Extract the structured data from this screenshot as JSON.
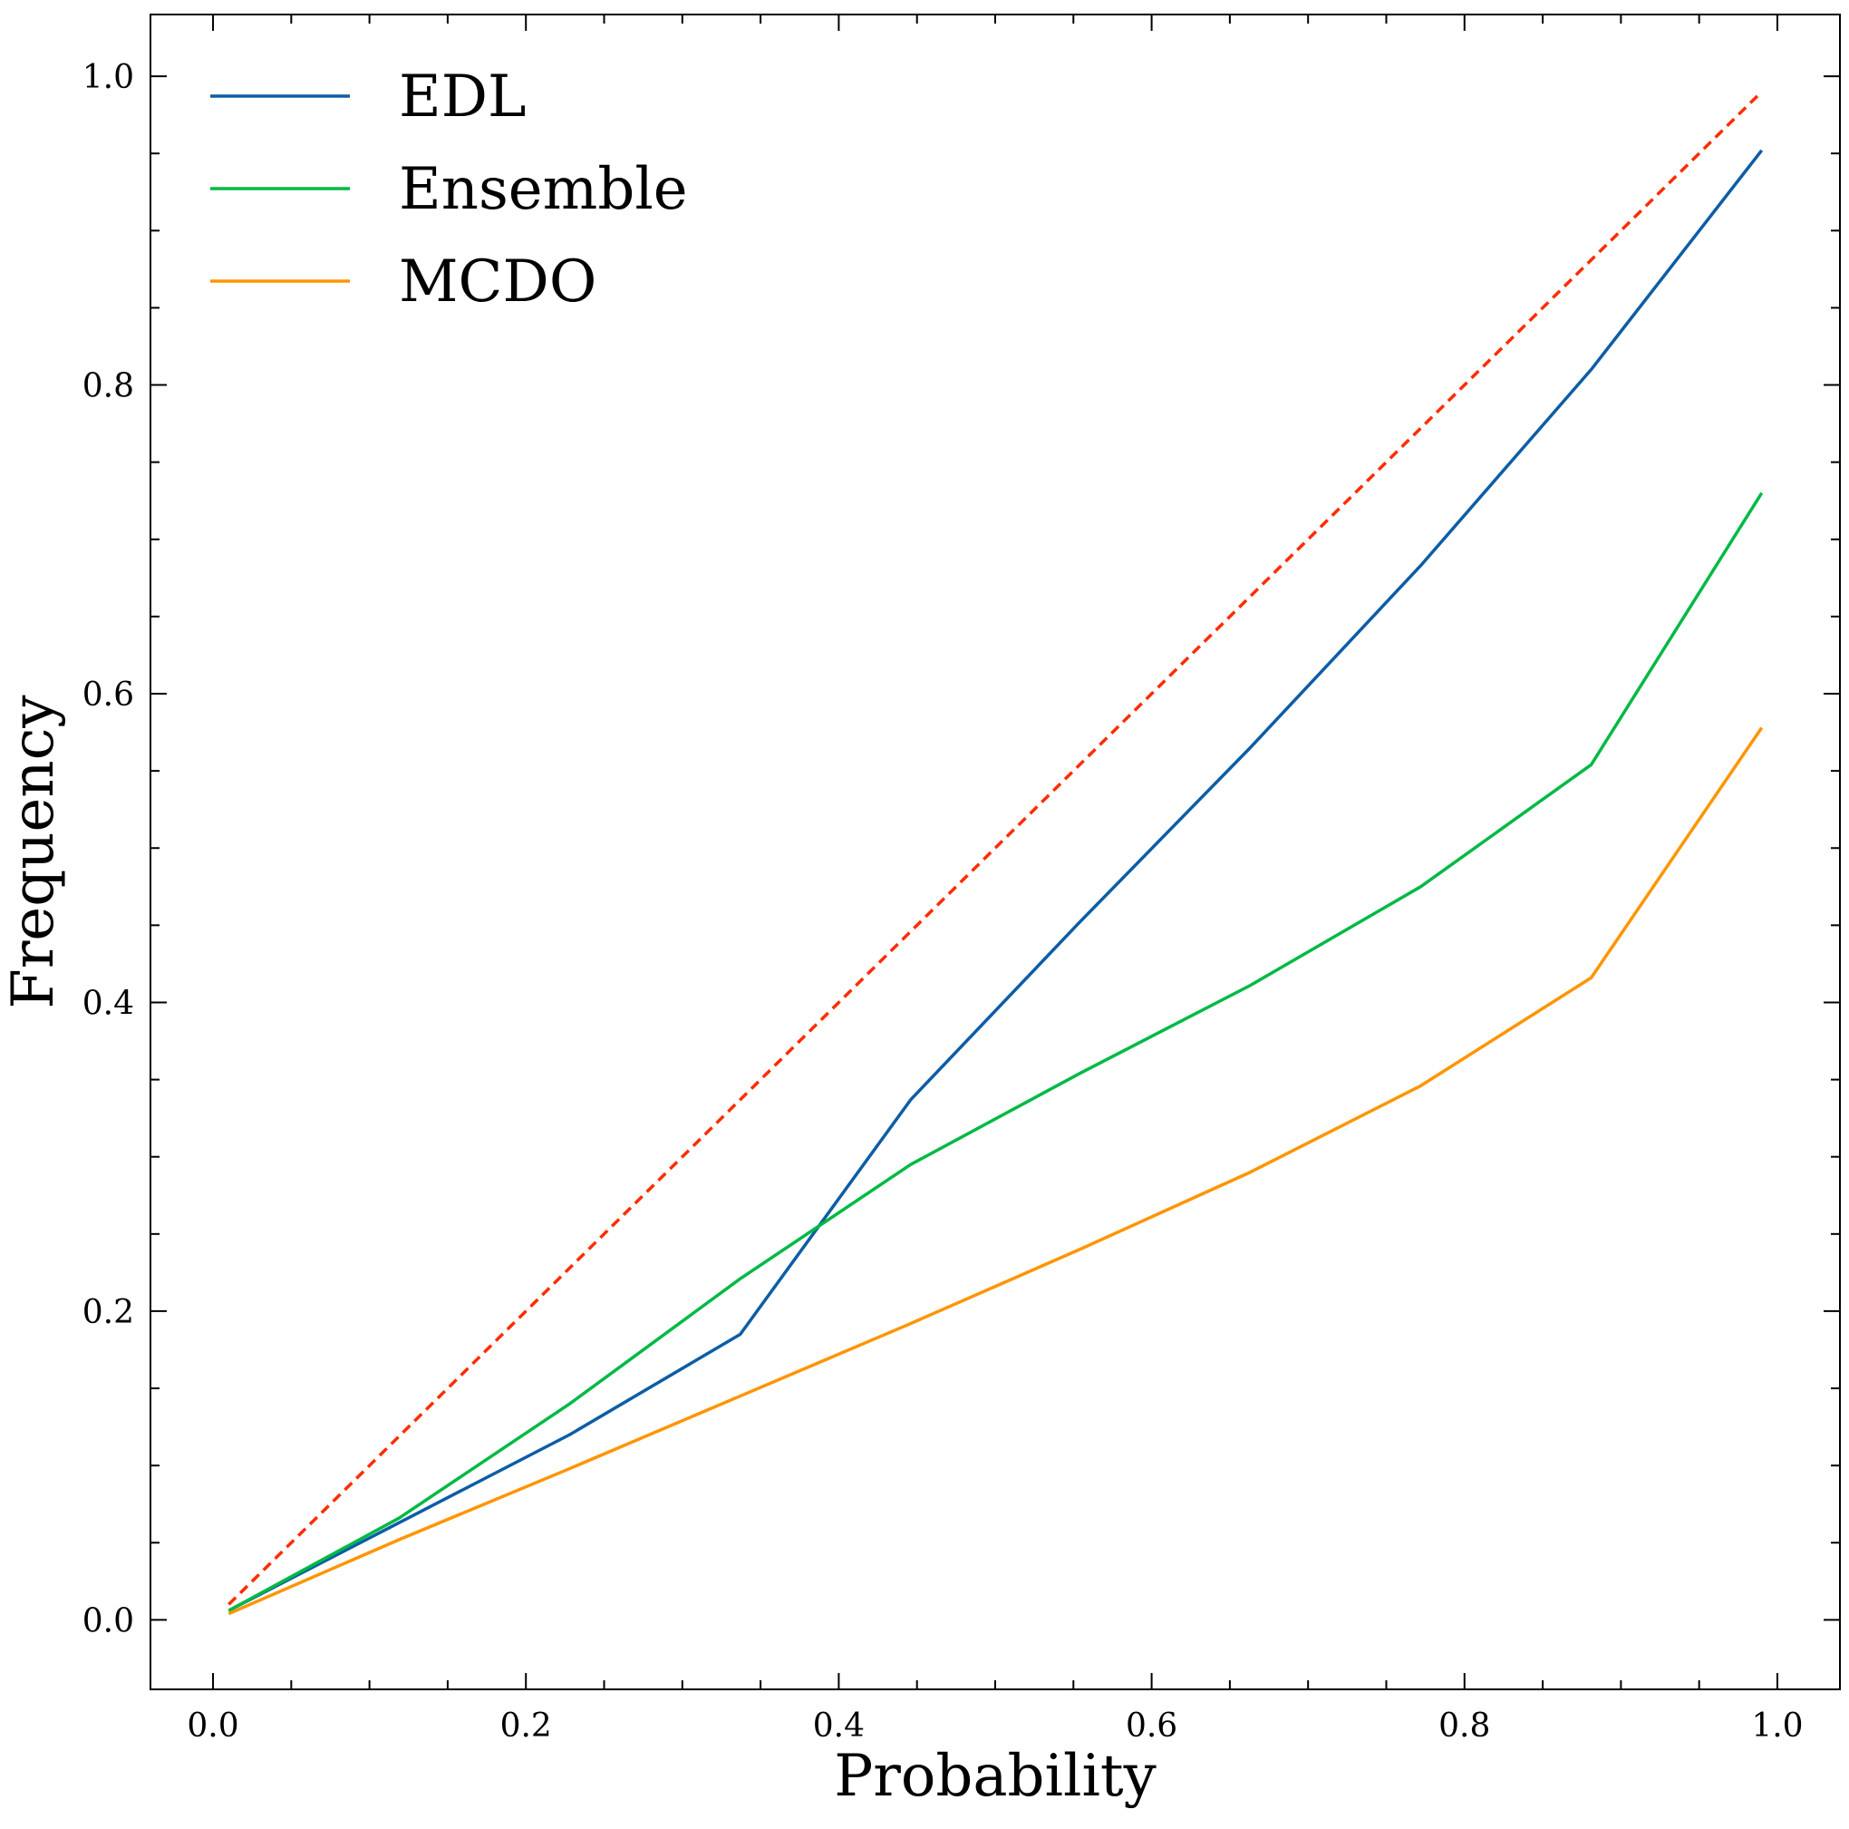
{
  "chart_data": {
    "type": "line",
    "title": "",
    "xlabel": "Probability",
    "ylabel": "Frequency",
    "xlim": [
      -0.04,
      1.04
    ],
    "ylim": [
      -0.045,
      1.04
    ],
    "xticks": [
      0.0,
      0.2,
      0.4,
      0.6,
      0.8,
      1.0
    ],
    "xtick_labels": [
      "0.0",
      "0.2",
      "0.4",
      "0.6",
      "0.8",
      "1.0"
    ],
    "yticks": [
      0.0,
      0.2,
      0.4,
      0.6,
      0.8,
      1.0
    ],
    "ytick_labels": [
      "0.0",
      "0.2",
      "0.4",
      "0.6",
      "0.8",
      "1.0"
    ],
    "grid": false,
    "legend_position": "top-left",
    "x": [
      0.01,
      0.119,
      0.228,
      0.337,
      0.446,
      0.554,
      0.663,
      0.772,
      0.881,
      0.99
    ],
    "reference": {
      "x": [
        0.01,
        0.99
      ],
      "values": [
        0.01,
        0.99
      ],
      "color": "#ff2c00",
      "style": "dashed"
    },
    "series": [
      {
        "name": "EDL",
        "color": "#0c5da5",
        "values": [
          0.006,
          0.063,
          0.12,
          0.185,
          0.337,
          0.452,
          0.565,
          0.683,
          0.81,
          0.952
        ]
      },
      {
        "name": "Ensemble",
        "color": "#00b945",
        "values": [
          0.006,
          0.066,
          0.14,
          0.221,
          0.295,
          0.354,
          0.411,
          0.475,
          0.554,
          0.73
        ]
      },
      {
        "name": "MCDO",
        "color": "#ff9500",
        "values": [
          0.004,
          0.052,
          0.098,
          0.145,
          0.192,
          0.24,
          0.29,
          0.346,
          0.416,
          0.578
        ]
      }
    ]
  }
}
